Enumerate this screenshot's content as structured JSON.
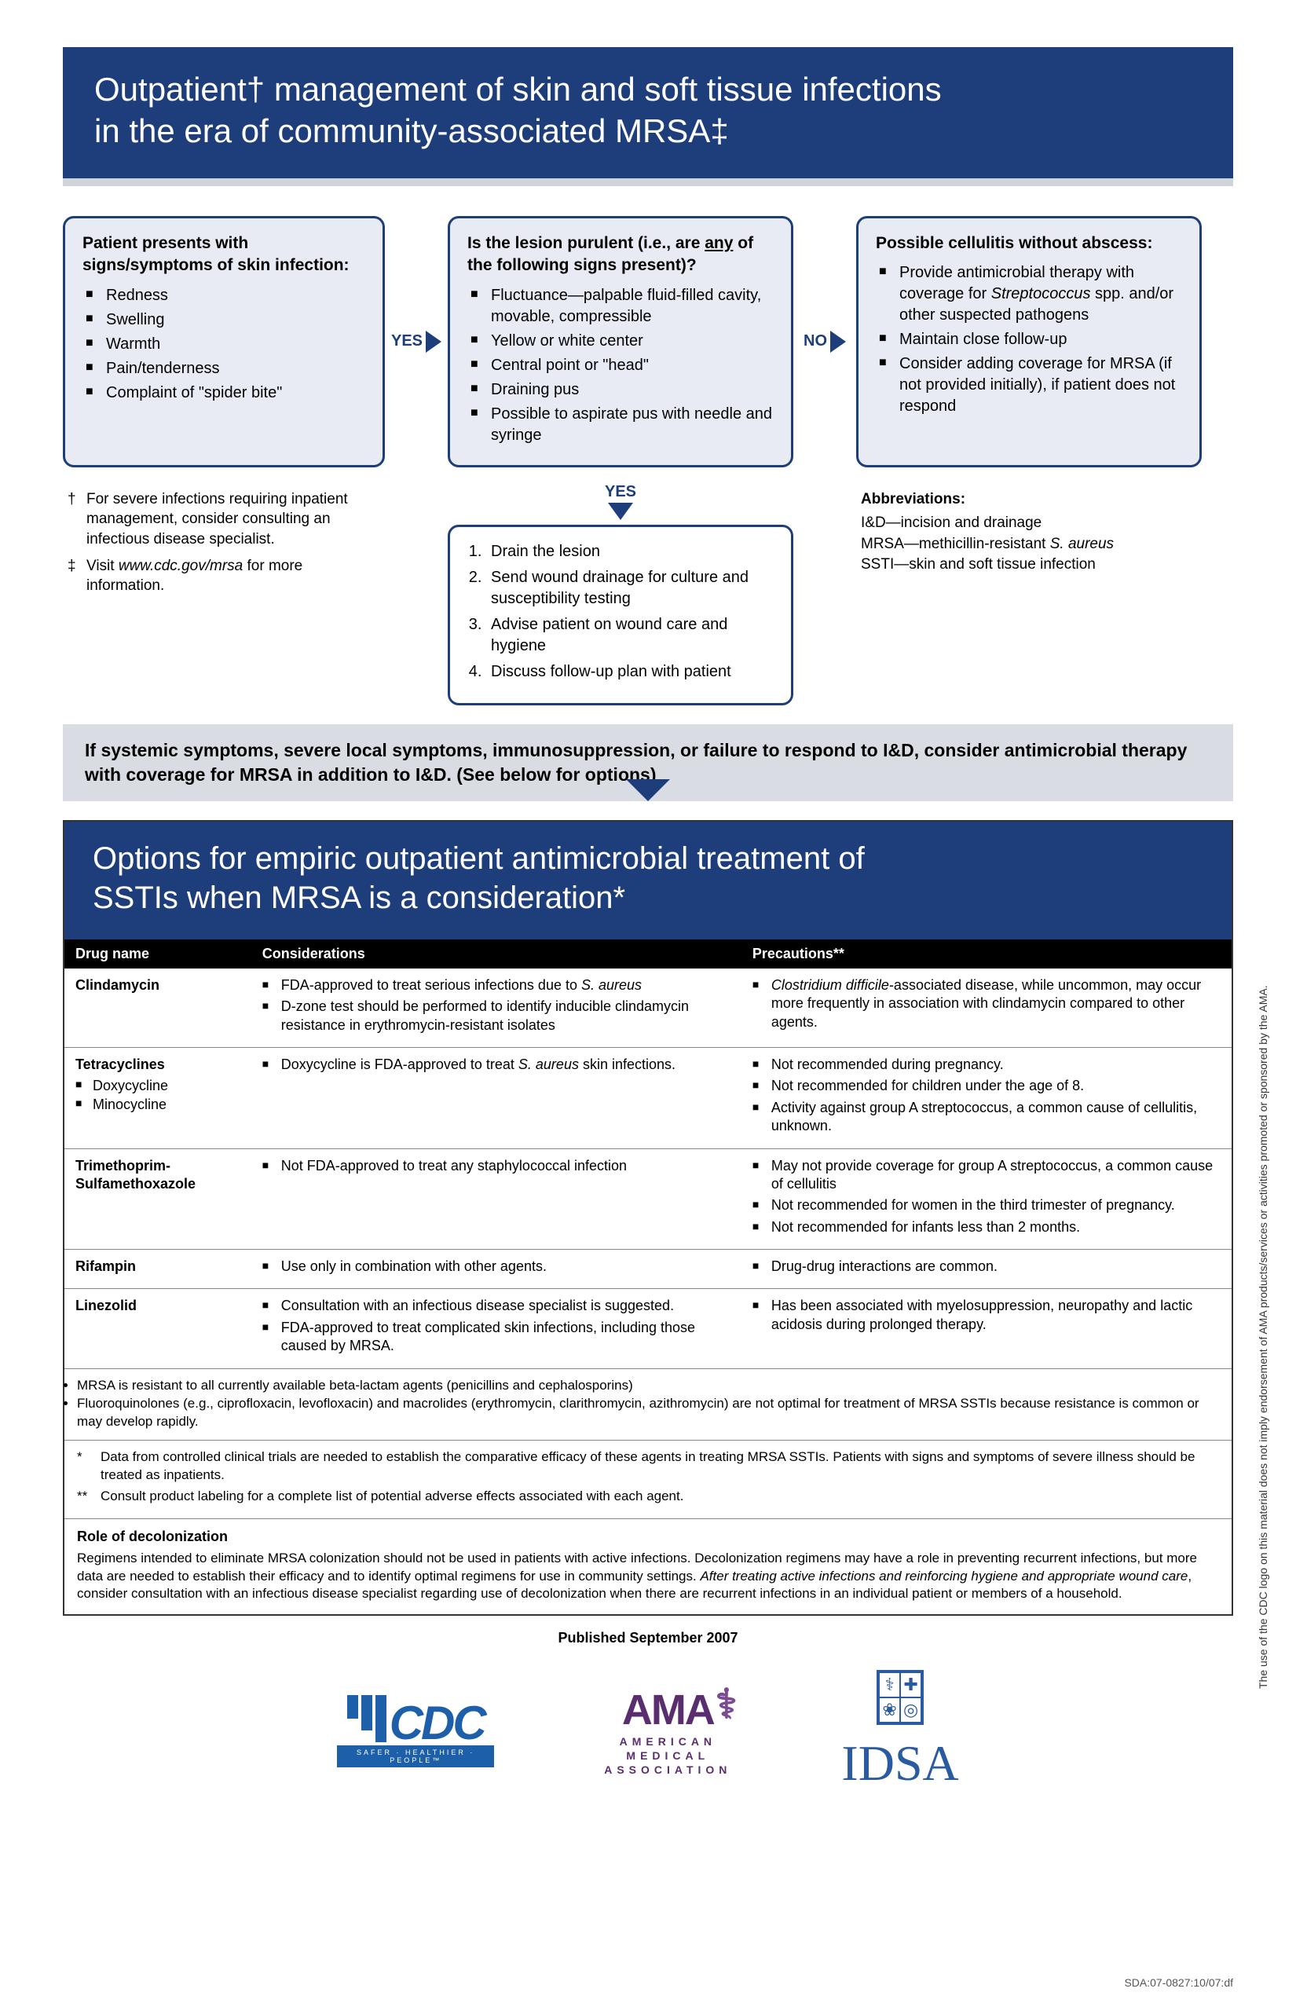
{
  "banner1_line1": "Outpatient† management of skin and soft tissue infections",
  "banner1_line2": "in the era of community-associated MRSA‡",
  "box1_title": "Patient presents with signs/symptoms of skin infection:",
  "box1_items": [
    "Redness",
    "Swelling",
    "Warmth",
    "Pain/tenderness",
    "Complaint of \"spider bite\""
  ],
  "conn_yes": "YES",
  "conn_no": "NO",
  "box2_title_a": "Is the lesion purulent (i.e., are ",
  "box2_title_any": "any",
  "box2_title_b": " of the following signs present)?",
  "box2_items": [
    "Fluctuance—palpable fluid-filled cavity, movable, compressible",
    "Yellow or white center",
    "Central point or \"head\"",
    "Draining pus",
    "Possible to aspirate pus with needle and syringe"
  ],
  "box3_title": "Possible cellulitis without abscess:",
  "box3_items": [
    "Provide antimicrobial therapy with coverage for Streptococcus spp. and/or other suspected pathogens",
    "Maintain close follow-up",
    "Consider adding coverage for MRSA (if not provided initially), if patient does not respond"
  ],
  "footnote_dagger": "For severe infections requiring inpatient management, consider consulting an infectious disease specialist.",
  "footnote_ddagger_a": "Visit ",
  "footnote_ddagger_url": "www.cdc.gov/mrsa",
  "footnote_ddagger_b": " for more information.",
  "box4_items": [
    "Drain the lesion",
    "Send wound drainage for culture and susceptibility testing",
    "Advise patient on wound care and hygiene",
    "Discuss follow-up plan with patient"
  ],
  "abbrev_title": "Abbreviations:",
  "abbrev_lines": [
    "I&D—incision and drainage",
    "MRSA—methicillin-resistant S. aureus",
    "SSTI—skin and soft tissue infection"
  ],
  "graybar": "If systemic symptoms, severe local symptoms, immunosuppression, or failure to respond to I&D, consider antimicrobial therapy with coverage for MRSA in addition to I&D. (See below for options)",
  "banner2_line1": "Options for empiric outpatient antimicrobial treatment of",
  "banner2_line2": "SSTIs when MRSA is a consideration*",
  "th_drug": "Drug name",
  "th_cons": "Considerations",
  "th_prec": "Precautions**",
  "drugs": [
    {
      "name": "Clindamycin",
      "sub": [],
      "cons": [
        "FDA-approved to treat serious infections due to S. aureus",
        "D-zone test should be performed to identify inducible clindamycin resistance in erythromycin-resistant isolates"
      ],
      "prec": [
        "Clostridium difficile-associated disease, while uncommon, may occur more frequently in association with clindamycin compared to other agents."
      ]
    },
    {
      "name": "Tetracyclines",
      "sub": [
        "Doxycycline",
        "Minocycline"
      ],
      "cons": [
        "Doxycycline is FDA-approved to treat S. aureus skin infections."
      ],
      "prec": [
        "Not recommended during pregnancy.",
        "Not recommended for children under the age of 8.",
        "Activity against group A streptococcus, a common cause of cellulitis, unknown."
      ]
    },
    {
      "name": "Trimethoprim-Sulfamethoxazole",
      "sub": [],
      "cons": [
        "Not FDA-approved to treat any staphylococcal infection"
      ],
      "prec": [
        "May not provide coverage for group A streptococcus, a common cause of cellulitis",
        "Not recommended for women in the third trimester of pregnancy.",
        "Not recommended for infants less than 2 months."
      ]
    },
    {
      "name": "Rifampin",
      "sub": [],
      "cons": [
        "Use only in combination with other agents."
      ],
      "prec": [
        "Drug-drug interactions are common."
      ]
    },
    {
      "name": "Linezolid",
      "sub": [],
      "cons": [
        "Consultation with an infectious disease specialist is suggested.",
        "FDA-approved to treat complicated skin infections, including those caused by MRSA."
      ],
      "prec": [
        "Has been associated with myelosuppression, neuropathy and lactic acidosis during prolonged therapy."
      ]
    }
  ],
  "table_notes": [
    "MRSA is resistant to all currently available beta-lactam agents (penicillins and cephalosporins)",
    "Fluoroquinolones (e.g., ciprofloxacin, levofloxacin) and macrolides (erythromycin, clarithromycin, azithromycin) are not optimal for treatment of MRSA SSTIs because resistance is common or may develop rapidly."
  ],
  "star1": "Data from controlled clinical trials are needed to establish the comparative efficacy of these agents in treating MRSA SSTIs. Patients with signs and symptoms of severe illness should be treated as inpatients.",
  "star2": "Consult product labeling for a complete list of potential adverse effects associated with each agent.",
  "role_title": "Role of decolonization",
  "role_text_a": "Regimens intended to eliminate MRSA colonization should not be used in patients with active infections. Decolonization regimens may have a role in preventing recurrent infections, but more data are needed to establish their efficacy and to identify optimal regimens for use in community settings. ",
  "role_text_italic": "After treating active infections and reinforcing hygiene and appropriate wound care",
  "role_text_b": ", consider consultation with an infectious disease specialist regarding use of decolonization when there are recurrent infections in an individual patient or members of a household.",
  "pubdate": "Published September 2007",
  "side_disclaimer": "The use of the CDC logo on this material does not imply endorsement of AMA products/services or activities promoted or sponsored by the AMA.",
  "docid": "SDA:07-0827:10/07:df",
  "logos": {
    "cdc_text": "CDC",
    "cdc_tag": "SAFER · HEALTHIER · PEOPLE™",
    "ama_top": "AMA",
    "ama_sub1": "AMERICAN",
    "ama_sub2": "MEDICAL",
    "ama_sub3": "ASSOCIATION",
    "idsa": "IDSA"
  },
  "colors": {
    "navy": "#1d3e7a",
    "light_blue_fill": "#e8ebf3",
    "gray_bar": "#d9dde3",
    "cdc_blue": "#1d5fa8",
    "ama_purple": "#5a2e6e",
    "idsa_blue": "#2a5aa0"
  }
}
